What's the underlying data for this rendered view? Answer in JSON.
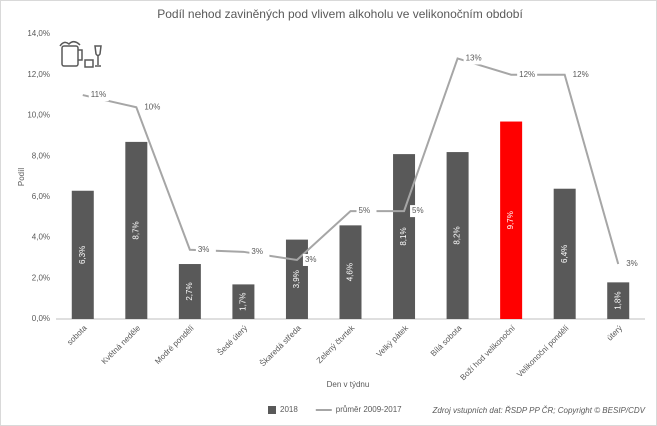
{
  "chart_data": {
    "type": "bar_line",
    "title": "Podíl nehod zaviněných pod vlivem alkoholu ve velikonočním období",
    "x_label": "Den v týdnu",
    "y_label": "Podíl",
    "source": "Zdroj vstupních dat: ŘSDP PP ČR; Copyright © BESIP/CDV",
    "categories": [
      "sobota",
      "Květná neděle",
      "Modré pondělí",
      "Šedé úterý",
      "Škaredá středa",
      "Zelený čtvrtek",
      "Velký pátek",
      "Bílá sobota",
      "Boží hod velikonoční",
      "Velikonoční pondělí",
      "úterý"
    ],
    "series": [
      {
        "name": "2018",
        "type": "bar",
        "color": "#595959",
        "colors": [
          "#595959",
          "#595959",
          "#595959",
          "#595959",
          "#595959",
          "#595959",
          "#595959",
          "#595959",
          "#ff0000",
          "#595959",
          "#595959"
        ],
        "values": [
          6.3,
          8.7,
          2.7,
          1.7,
          3.9,
          4.6,
          8.1,
          8.2,
          9.7,
          6.4,
          1.8
        ],
        "value_labels": [
          "6,3%",
          "8,7%",
          "2,7%",
          "1,7%",
          "3,9%",
          "4,6%",
          "8,1%",
          "8,2%",
          "9,7%",
          "6,4%",
          "1,8%"
        ]
      },
      {
        "name": "průměr 2009-2017",
        "type": "line",
        "color": "#a6a6a6",
        "values": [
          11.0,
          10.4,
          3.4,
          3.3,
          2.9,
          5.3,
          5.3,
          12.8,
          12.0,
          12.0,
          2.7
        ],
        "value_labels": [
          "11%",
          "10%",
          "3%",
          "3%",
          "3%",
          "5%",
          "5%",
          "13%",
          "12%",
          "12%",
          "3%"
        ]
      }
    ],
    "ylim": [
      0,
      14
    ],
    "yticks": [
      {
        "value": 0,
        "label": "0,0%"
      },
      {
        "value": 2,
        "label": "2,0%"
      },
      {
        "value": 4,
        "label": "4,0%"
      },
      {
        "value": 6,
        "label": "6,0%"
      },
      {
        "value": 8,
        "label": "8,0%"
      },
      {
        "value": 10,
        "label": "10,0%"
      },
      {
        "value": 12,
        "label": "12,0%"
      },
      {
        "value": 14,
        "label": "14,0%"
      }
    ],
    "grid": false,
    "legend": "bottom"
  }
}
